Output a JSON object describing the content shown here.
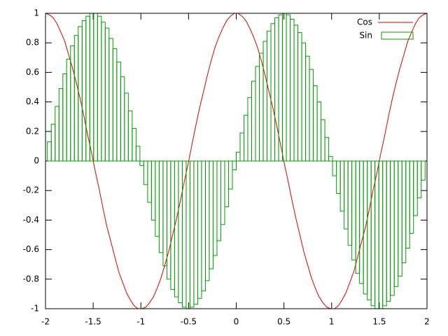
{
  "chart_data": {
    "type": "line",
    "x": [
      -2,
      -1.96,
      -1.919,
      -1.879,
      -1.838,
      -1.798,
      -1.758,
      -1.717,
      -1.677,
      -1.636,
      -1.596,
      -1.556,
      -1.515,
      -1.475,
      -1.434,
      -1.394,
      -1.354,
      -1.313,
      -1.273,
      -1.232,
      -1.192,
      -1.152,
      -1.111,
      -1.071,
      -1.03,
      -0.99,
      -0.949,
      -0.909,
      -0.869,
      -0.828,
      -0.788,
      -0.747,
      -0.707,
      -0.667,
      -0.626,
      -0.586,
      -0.545,
      -0.505,
      -0.465,
      -0.424,
      -0.384,
      -0.343,
      -0.303,
      -0.263,
      -0.222,
      -0.182,
      -0.141,
      -0.101,
      -0.061,
      -0.02,
      0.02,
      0.061,
      0.101,
      0.141,
      0.182,
      0.222,
      0.263,
      0.303,
      0.343,
      0.384,
      0.424,
      0.465,
      0.505,
      0.545,
      0.586,
      0.626,
      0.667,
      0.707,
      0.747,
      0.788,
      0.828,
      0.869,
      0.909,
      0.949,
      0.99,
      1.03,
      1.071,
      1.111,
      1.152,
      1.192,
      1.232,
      1.273,
      1.313,
      1.354,
      1.394,
      1.434,
      1.475,
      1.515,
      1.556,
      1.596,
      1.636,
      1.677,
      1.717,
      1.758,
      1.798,
      1.838,
      1.879,
      1.919,
      1.96,
      2
    ],
    "series": [
      {
        "name": "Cos",
        "style": "lines",
        "color": "#e00000",
        "values": [
          1,
          0.99,
          0.97,
          0.93,
          0.87,
          0.81,
          0.72,
          0.63,
          0.53,
          0.42,
          0.3,
          0.17,
          0.05,
          -0.08,
          -0.2,
          -0.33,
          -0.45,
          -0.55,
          -0.65,
          -0.75,
          -0.82,
          -0.89,
          -0.94,
          -0.98,
          -1.0,
          -1.0,
          -0.99,
          -0.96,
          -0.92,
          -0.86,
          -0.79,
          -0.7,
          -0.61,
          -0.5,
          -0.39,
          -0.27,
          -0.14,
          -0.02,
          0.11,
          0.24,
          0.36,
          0.47,
          0.58,
          0.68,
          0.77,
          0.84,
          0.9,
          0.95,
          0.98,
          1.0,
          1.0,
          0.98,
          0.95,
          0.9,
          0.84,
          0.77,
          0.68,
          0.58,
          0.47,
          0.36,
          0.24,
          0.11,
          -0.02,
          -0.14,
          -0.27,
          -0.39,
          -0.5,
          -0.61,
          -0.7,
          -0.79,
          -0.86,
          -0.92,
          -0.96,
          -0.99,
          -1.0,
          -1.0,
          -0.98,
          -0.94,
          -0.89,
          -0.82,
          -0.75,
          -0.65,
          -0.55,
          -0.45,
          -0.33,
          -0.2,
          -0.08,
          0.05,
          0.17,
          0.3,
          0.42,
          0.53,
          0.63,
          0.72,
          0.81,
          0.87,
          0.93,
          0.97,
          0.99,
          1
        ]
      },
      {
        "name": "Sin",
        "style": "boxes",
        "color": "#00a000",
        "values": [
          0,
          0.13,
          0.25,
          0.37,
          0.49,
          0.59,
          0.69,
          0.78,
          0.85,
          0.91,
          0.95,
          0.98,
          1.0,
          1.0,
          0.98,
          0.94,
          0.9,
          0.83,
          0.76,
          0.67,
          0.57,
          0.46,
          0.34,
          0.22,
          0.1,
          -0.03,
          -0.16,
          -0.28,
          -0.4,
          -0.51,
          -0.62,
          -0.71,
          -0.8,
          -0.87,
          -0.92,
          -0.96,
          -0.99,
          -1.0,
          -0.99,
          -0.97,
          -0.93,
          -0.88,
          -0.81,
          -0.73,
          -0.64,
          -0.54,
          -0.43,
          -0.31,
          -0.19,
          -0.06,
          0.06,
          0.19,
          0.31,
          0.43,
          0.54,
          0.64,
          0.73,
          0.81,
          0.88,
          0.93,
          0.97,
          0.99,
          1.0,
          0.99,
          0.96,
          0.92,
          0.87,
          0.8,
          0.71,
          0.62,
          0.51,
          0.4,
          0.28,
          0.16,
          0.03,
          -0.1,
          -0.22,
          -0.34,
          -0.46,
          -0.57,
          -0.67,
          -0.76,
          -0.83,
          -0.9,
          -0.94,
          -0.98,
          -1.0,
          -1.0,
          -0.98,
          -0.95,
          -0.91,
          -0.85,
          -0.78,
          -0.69,
          -0.59,
          -0.49,
          -0.37,
          -0.25,
          -0.13,
          0
        ]
      }
    ],
    "xlim": [
      -2,
      2
    ],
    "ylim": [
      -1,
      1
    ],
    "xticks": [
      -2,
      -1.5,
      -1,
      -0.5,
      0,
      0.5,
      1,
      1.5,
      2
    ],
    "yticks": [
      -1,
      -0.8,
      -0.6,
      -0.4,
      -0.2,
      0,
      0.2,
      0.4,
      0.6,
      0.8,
      1
    ],
    "legend": "top right"
  }
}
